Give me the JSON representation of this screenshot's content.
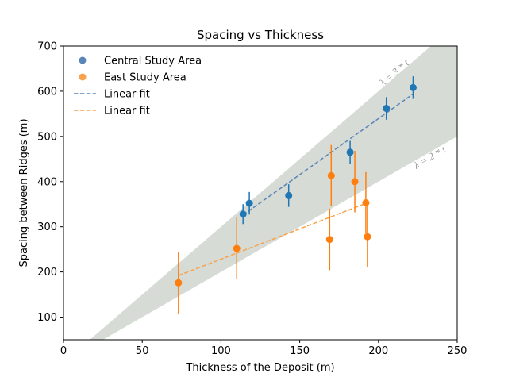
{
  "chart_data": {
    "type": "scatter",
    "title": "Spacing vs Thickness",
    "xlabel": "Thickness of the Deposit (m)",
    "ylabel": "Spacing between Ridges (m)",
    "xlim": [
      0,
      250
    ],
    "ylim": [
      50,
      700
    ],
    "xticks": [
      0,
      50,
      100,
      150,
      200,
      250
    ],
    "yticks": [
      100,
      200,
      300,
      400,
      500,
      600,
      700
    ],
    "grid": false,
    "legend_position": "top-left",
    "band": {
      "lower_multiplier": 2,
      "upper_multiplier": 3,
      "color": "#d6dbd6",
      "upper_label": "λ = 3 * t",
      "lower_label": "λ = 2 * t"
    },
    "series": [
      {
        "name": "Central Study Area",
        "color": "#1f77b4",
        "legend_color": "#5a85b8",
        "points": [
          {
            "x": 114,
            "y": 328,
            "err": 22
          },
          {
            "x": 118,
            "y": 352,
            "err": 25
          },
          {
            "x": 143,
            "y": 369,
            "err": 25
          },
          {
            "x": 182,
            "y": 465,
            "err": 25
          },
          {
            "x": 205,
            "y": 562,
            "err": 25
          },
          {
            "x": 222,
            "y": 608,
            "err": 25
          }
        ],
        "fit": {
          "x": [
            114,
            222
          ],
          "y": [
            326,
            594
          ]
        }
      },
      {
        "name": "East Study Area",
        "color": "#ff7f0e",
        "legend_color": "#f9a24a",
        "points": [
          {
            "x": 73,
            "y": 176,
            "err": 68
          },
          {
            "x": 110,
            "y": 252,
            "err": 68
          },
          {
            "x": 169,
            "y": 272,
            "err": 68
          },
          {
            "x": 170,
            "y": 413,
            "err": 68
          },
          {
            "x": 185,
            "y": 400,
            "err": 68
          },
          {
            "x": 192,
            "y": 353,
            "err": 68
          },
          {
            "x": 193,
            "y": 278,
            "err": 68
          }
        ],
        "fit": {
          "x": [
            73,
            193
          ],
          "y": [
            192,
            353
          ]
        }
      }
    ],
    "legend": [
      {
        "label": "Central Study Area",
        "kind": "marker",
        "series": 0
      },
      {
        "label": "East Study Area",
        "kind": "marker",
        "series": 1
      },
      {
        "label": "Linear fit",
        "kind": "dashed-line",
        "series": 0
      },
      {
        "label": "Linear fit",
        "kind": "dashed-line",
        "series": 1
      }
    ]
  }
}
